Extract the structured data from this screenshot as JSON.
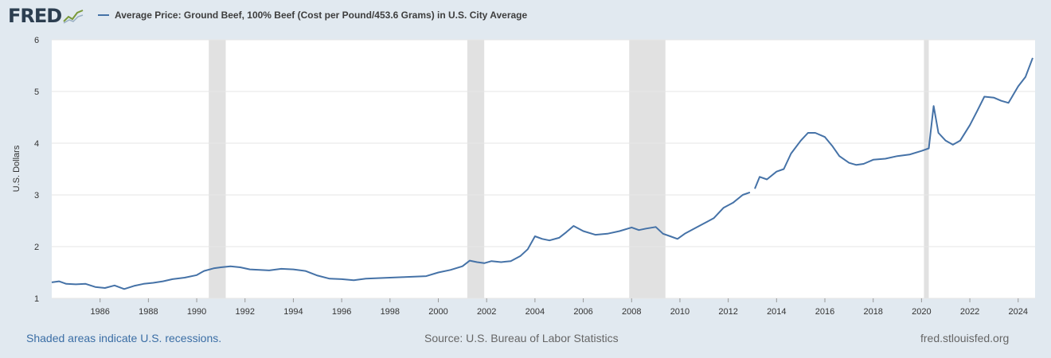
{
  "logo": {
    "text": "FRED",
    "icon": "fred-line-graph-icon"
  },
  "colors": {
    "line": "#4572a7",
    "recession": "#e1e1e1",
    "plot_bg": "#ffffff",
    "page_bg": "#e1e9f0"
  },
  "footer": {
    "left": "Shaded areas indicate U.S. recessions.",
    "center": "Source: U.S. Bureau of Labor Statistics",
    "right": "fred.stlouisfed.org"
  },
  "chart_data": {
    "type": "line",
    "title": "",
    "xlabel": "",
    "ylabel": "U.S. Dollars",
    "xlim": [
      1984,
      2024.7
    ],
    "ylim": [
      1,
      6
    ],
    "xticks": [
      "1986",
      "1988",
      "1990",
      "1992",
      "1994",
      "1996",
      "1998",
      "2000",
      "2002",
      "2004",
      "2006",
      "2008",
      "2010",
      "2012",
      "2014",
      "2016",
      "2018",
      "2020",
      "2022",
      "2024"
    ],
    "yticks": [
      "1",
      "2",
      "3",
      "4",
      "5",
      "6"
    ],
    "grid": "horizontal",
    "legend_position": "top",
    "recessions": [
      [
        1990.5,
        1991.2
      ],
      [
        2001.2,
        2001.9
      ],
      [
        2007.9,
        2009.4
      ],
      [
        2020.1,
        2020.3
      ]
    ],
    "series": [
      {
        "name": "Average Price: Ground Beef, 100% Beef (Cost per Pound/453.6 Grams) in U.S. City Average",
        "segments": [
          [
            [
              1984.0,
              1.31
            ],
            [
              1984.3,
              1.33
            ],
            [
              1984.6,
              1.28
            ],
            [
              1985.0,
              1.27
            ],
            [
              1985.4,
              1.28
            ],
            [
              1985.8,
              1.22
            ],
            [
              1986.2,
              1.2
            ],
            [
              1986.6,
              1.25
            ],
            [
              1987.0,
              1.18
            ],
            [
              1987.4,
              1.24
            ],
            [
              1987.8,
              1.28
            ],
            [
              1988.2,
              1.3
            ],
            [
              1988.6,
              1.33
            ],
            [
              1989.0,
              1.37
            ],
            [
              1989.5,
              1.4
            ],
            [
              1990.0,
              1.45
            ],
            [
              1990.3,
              1.53
            ],
            [
              1990.7,
              1.58
            ],
            [
              1991.0,
              1.6
            ],
            [
              1991.4,
              1.62
            ],
            [
              1991.8,
              1.6
            ],
            [
              1992.2,
              1.56
            ],
            [
              1992.6,
              1.55
            ],
            [
              1993.0,
              1.54
            ],
            [
              1993.5,
              1.57
            ],
            [
              1994.0,
              1.56
            ],
            [
              1994.5,
              1.53
            ],
            [
              1995.0,
              1.44
            ],
            [
              1995.5,
              1.38
            ],
            [
              1996.0,
              1.37
            ],
            [
              1996.5,
              1.35
            ],
            [
              1997.0,
              1.38
            ],
            [
              1997.5,
              1.39
            ],
            [
              1998.0,
              1.4
            ],
            [
              1998.5,
              1.41
            ],
            [
              1999.0,
              1.42
            ],
            [
              1999.5,
              1.43
            ],
            [
              2000.0,
              1.5
            ],
            [
              2000.5,
              1.55
            ],
            [
              2001.0,
              1.62
            ],
            [
              2001.3,
              1.73
            ],
            [
              2001.6,
              1.7
            ],
            [
              2001.9,
              1.68
            ],
            [
              2002.2,
              1.72
            ],
            [
              2002.6,
              1.7
            ],
            [
              2003.0,
              1.72
            ],
            [
              2003.4,
              1.82
            ],
            [
              2003.7,
              1.95
            ],
            [
              2004.0,
              2.2
            ],
            [
              2004.3,
              2.15
            ],
            [
              2004.6,
              2.12
            ],
            [
              2005.0,
              2.17
            ],
            [
              2005.3,
              2.28
            ],
            [
              2005.6,
              2.4
            ],
            [
              2006.0,
              2.3
            ],
            [
              2006.5,
              2.23
            ],
            [
              2007.0,
              2.25
            ],
            [
              2007.5,
              2.3
            ],
            [
              2008.0,
              2.37
            ],
            [
              2008.3,
              2.32
            ],
            [
              2008.6,
              2.35
            ],
            [
              2009.0,
              2.38
            ],
            [
              2009.3,
              2.25
            ],
            [
              2009.6,
              2.2
            ],
            [
              2009.9,
              2.15
            ],
            [
              2010.2,
              2.25
            ],
            [
              2010.6,
              2.35
            ],
            [
              2011.0,
              2.45
            ],
            [
              2011.4,
              2.55
            ],
            [
              2011.8,
              2.75
            ],
            [
              2012.2,
              2.85
            ],
            [
              2012.6,
              3.0
            ],
            [
              2012.9,
              3.05
            ]
          ],
          [
            [
              2013.1,
              3.12
            ],
            [
              2013.3,
              3.35
            ],
            [
              2013.6,
              3.3
            ],
            [
              2014.0,
              3.45
            ],
            [
              2014.3,
              3.5
            ],
            [
              2014.6,
              3.8
            ],
            [
              2015.0,
              4.05
            ],
            [
              2015.3,
              4.2
            ],
            [
              2015.6,
              4.2
            ],
            [
              2016.0,
              4.12
            ],
            [
              2016.3,
              3.95
            ],
            [
              2016.6,
              3.75
            ],
            [
              2017.0,
              3.62
            ],
            [
              2017.3,
              3.58
            ],
            [
              2017.6,
              3.6
            ],
            [
              2018.0,
              3.68
            ],
            [
              2018.5,
              3.7
            ],
            [
              2019.0,
              3.75
            ],
            [
              2019.5,
              3.78
            ],
            [
              2020.0,
              3.85
            ],
            [
              2020.3,
              3.9
            ],
            [
              2020.5,
              4.72
            ],
            [
              2020.7,
              4.2
            ],
            [
              2021.0,
              4.05
            ],
            [
              2021.3,
              3.97
            ],
            [
              2021.6,
              4.05
            ],
            [
              2022.0,
              4.35
            ],
            [
              2022.3,
              4.62
            ],
            [
              2022.6,
              4.9
            ],
            [
              2023.0,
              4.88
            ],
            [
              2023.3,
              4.82
            ],
            [
              2023.6,
              4.78
            ],
            [
              2024.0,
              5.1
            ],
            [
              2024.3,
              5.28
            ],
            [
              2024.6,
              5.65
            ]
          ]
        ]
      }
    ]
  }
}
